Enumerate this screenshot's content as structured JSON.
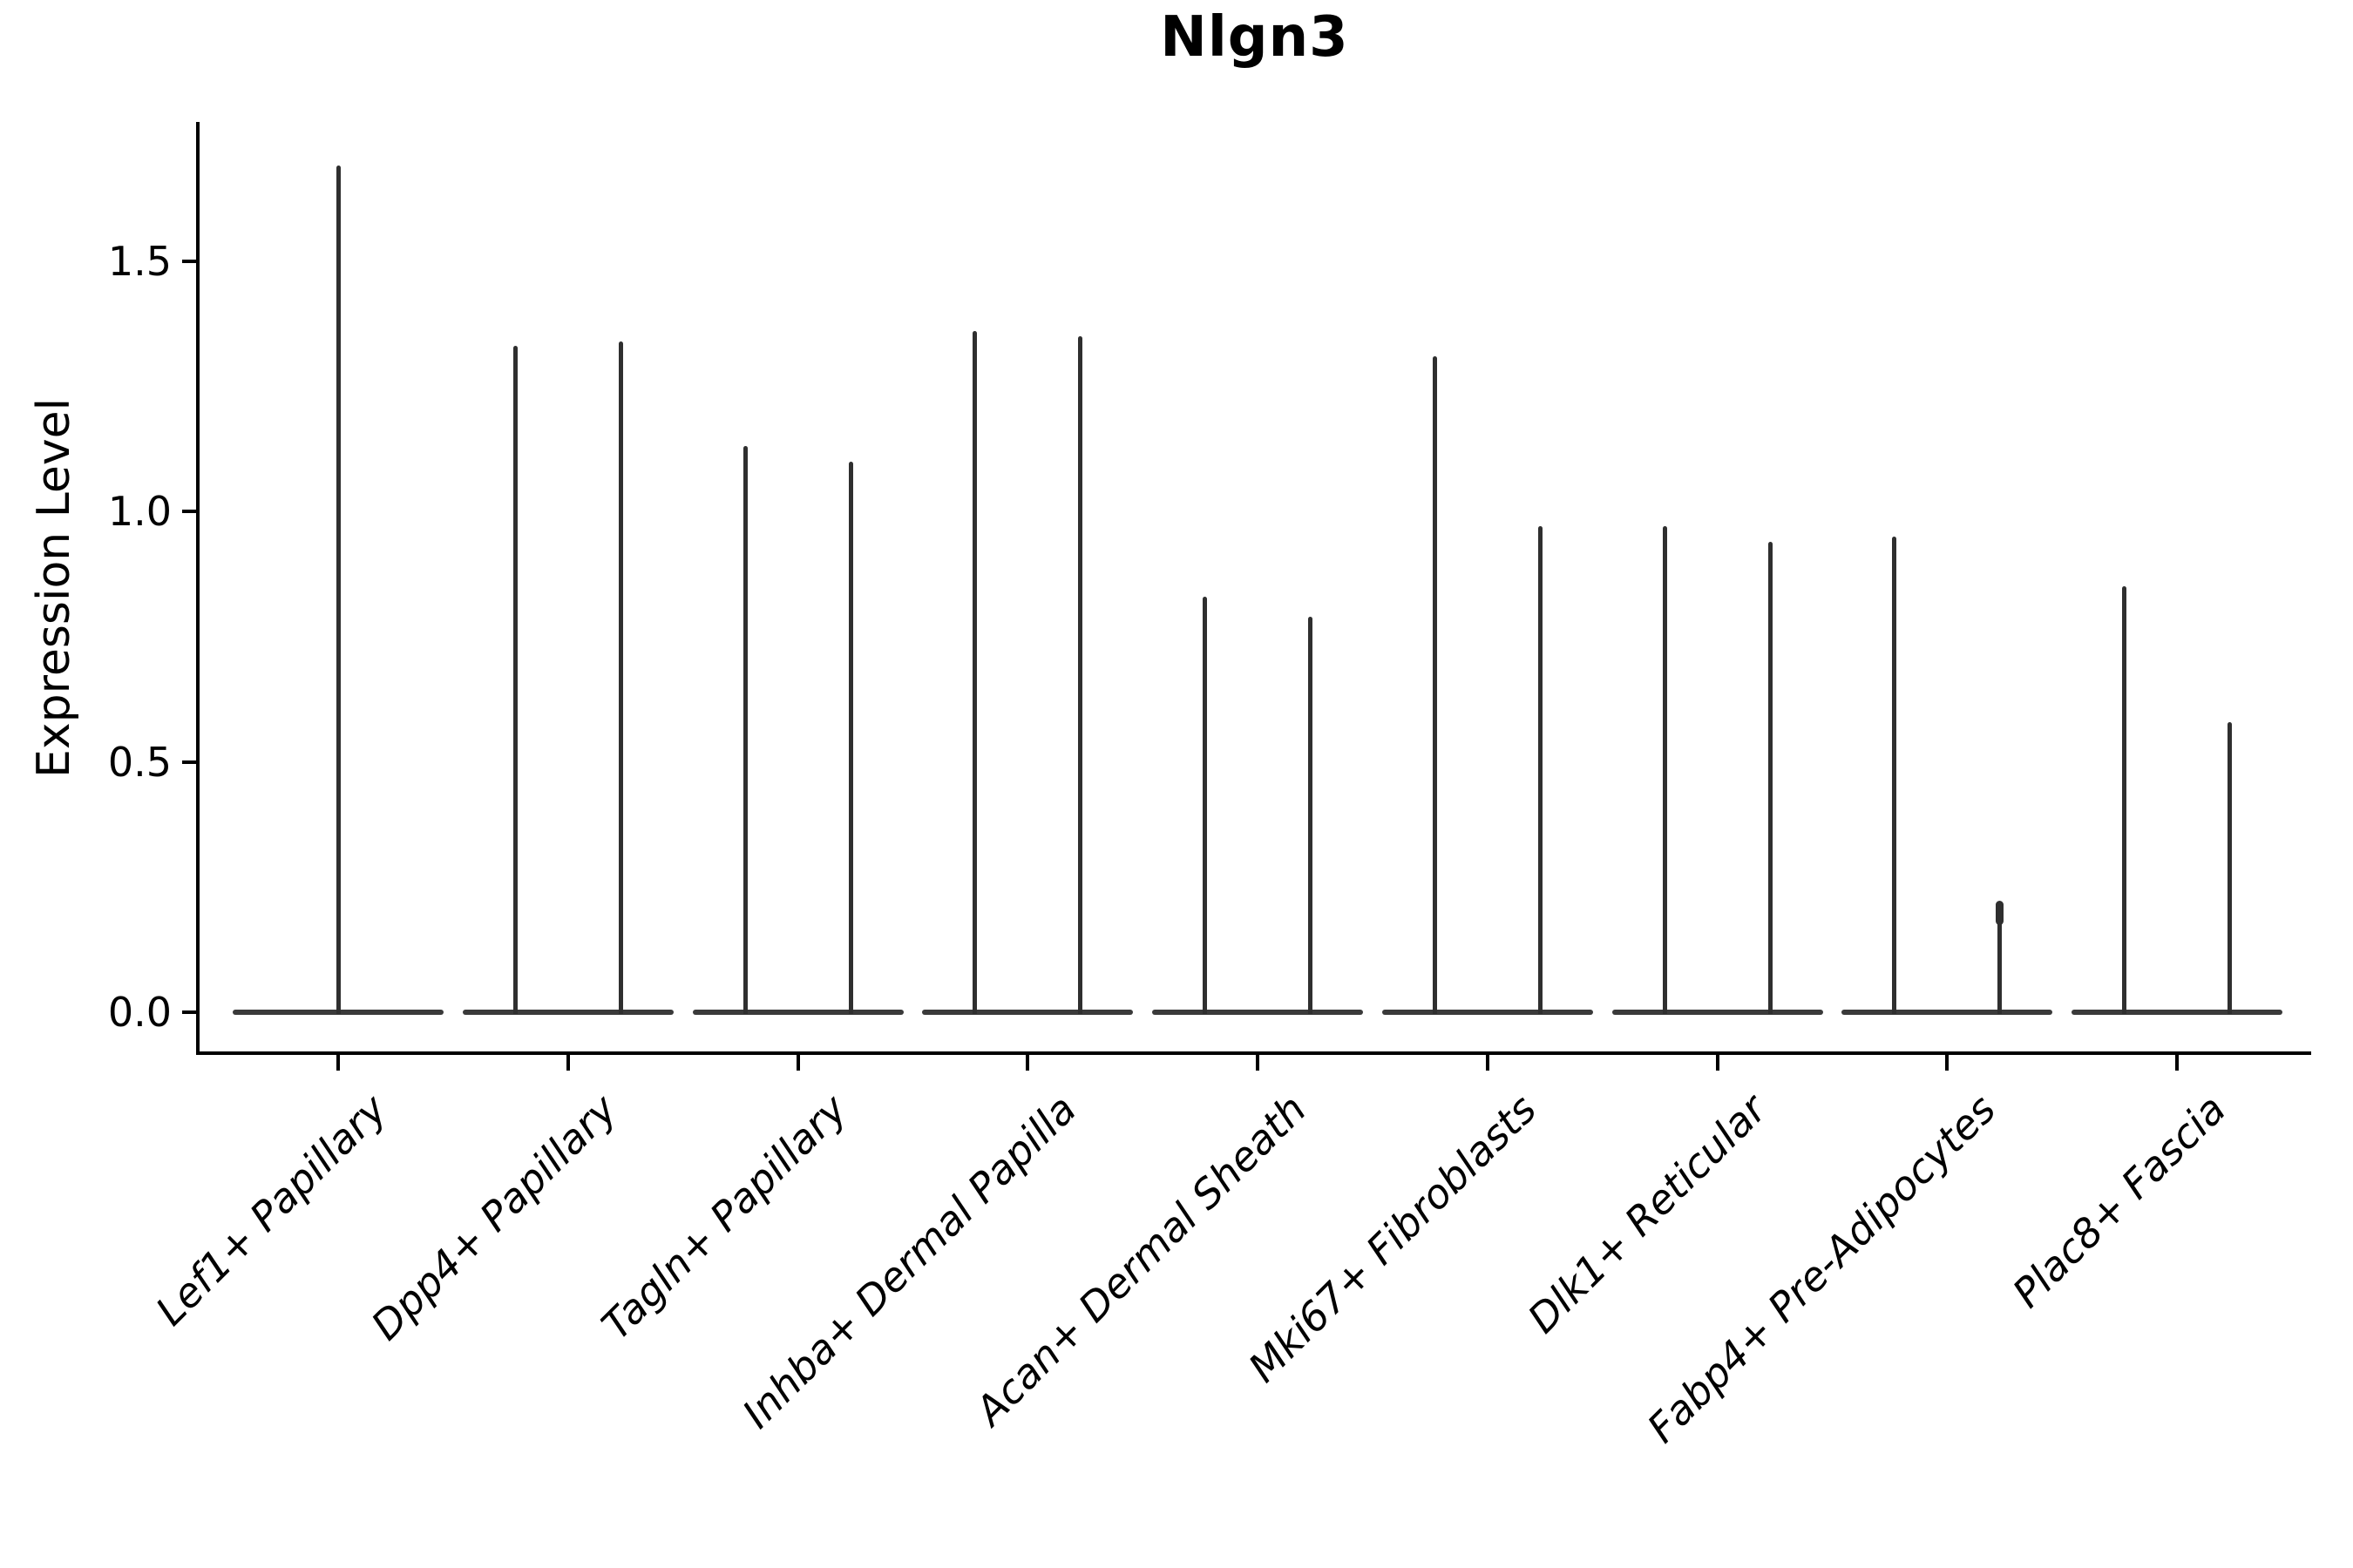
{
  "title": "Nlgn3",
  "y_axis": {
    "label": "Expression Level",
    "ticks": [
      {
        "label": "0.0",
        "value": 0.0
      },
      {
        "label": "0.5",
        "value": 0.5
      },
      {
        "label": "1.0",
        "value": 1.0
      },
      {
        "label": "1.5",
        "value": 1.5
      }
    ]
  },
  "x_axis": {
    "categories": [
      "Lef1+ Papillary",
      "Dpp4+ Papillary",
      "Tagln+ Papillary",
      "Inhba+ Dermal Papilla",
      "Acan+ Dermal Sheath",
      "Mki67+ Fibroblasts",
      "Dlk1+ Reticular",
      "Fabp4+ Pre-Adipocytes",
      "Plac8+ Fascia"
    ]
  },
  "colors": {
    "violin": "#2f2f2f",
    "axis": "#000000",
    "text": "#000000",
    "background": "#ffffff"
  },
  "chart_data": {
    "type": "violin",
    "title": "Nlgn3",
    "xlabel": "",
    "ylabel": "Expression Level",
    "ylim": [
      -0.08,
      1.78
    ],
    "y_ticks": [
      0.0,
      0.5,
      1.0,
      1.5
    ],
    "grid": false,
    "legend": "none",
    "baseline_value": 0.0,
    "shape_note": "Each violin is a wide flat body at 0 with a narrow vertical tail reaching its maximum expression value",
    "categories": [
      "Lef1+ Papillary",
      "Dpp4+ Papillary",
      "Tagln+ Papillary",
      "Inhba+ Dermal Papilla",
      "Acan+ Dermal Sheath",
      "Mki67+ Fibroblasts",
      "Dlk1+ Reticular",
      "Fabp4+ Pre-Adipocytes",
      "Plac8+ Fascia"
    ],
    "groups": [
      {
        "category": "Lef1+ Papillary",
        "violins": [
          {
            "max_expression": 1.69
          }
        ]
      },
      {
        "category": "Dpp4+ Papillary",
        "violins": [
          {
            "max_expression": 1.33
          },
          {
            "max_expression": 1.34
          }
        ]
      },
      {
        "category": "Tagln+ Papillary",
        "violins": [
          {
            "max_expression": 1.13
          },
          {
            "max_expression": 1.1
          }
        ]
      },
      {
        "category": "Inhba+ Dermal Papilla",
        "violins": [
          {
            "max_expression": 1.36
          },
          {
            "max_expression": 1.35
          }
        ]
      },
      {
        "category": "Acan+ Dermal Sheath",
        "violins": [
          {
            "max_expression": 0.83
          },
          {
            "max_expression": 0.79
          }
        ]
      },
      {
        "category": "Mki67+ Fibroblasts",
        "violins": [
          {
            "max_expression": 1.31
          },
          {
            "max_expression": 0.97
          }
        ]
      },
      {
        "category": "Dlk1+ Reticular",
        "violins": [
          {
            "max_expression": 0.97
          },
          {
            "max_expression": 0.94
          }
        ]
      },
      {
        "category": "Fabp4+ Pre-Adipocytes",
        "violins": [
          {
            "max_expression": 0.95
          },
          {
            "max_expression": 0.22,
            "tip_knob": true
          }
        ]
      },
      {
        "category": "Plac8+ Fascia",
        "violins": [
          {
            "max_expression": 0.85
          },
          {
            "max_expression": 0.58
          }
        ]
      }
    ]
  }
}
